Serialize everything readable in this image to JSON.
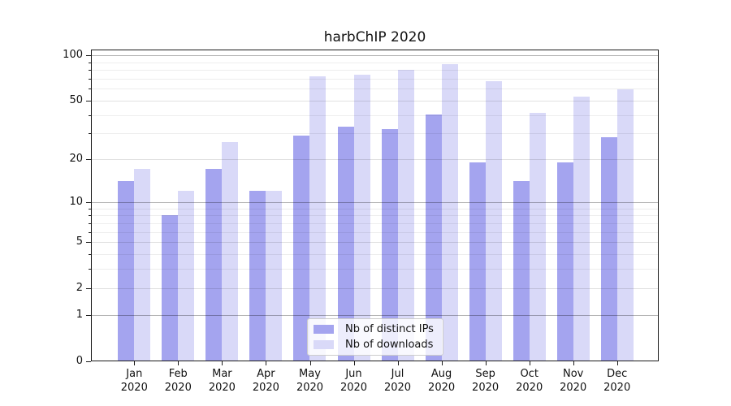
{
  "title": "harbChIP 2020",
  "chart_data": {
    "type": "bar",
    "title": "harbChIP 2020",
    "categories": [
      "Jan",
      "Feb",
      "Mar",
      "Apr",
      "May",
      "Jun",
      "Jul",
      "Aug",
      "Sep",
      "Oct",
      "Nov",
      "Dec"
    ],
    "category_year": "2020",
    "series": [
      {
        "name": "Nb of distinct IPs",
        "color": "#a4a4ef",
        "values": [
          14,
          8,
          17,
          12,
          29,
          33,
          32,
          40,
          19,
          14,
          19,
          28
        ]
      },
      {
        "name": "Nb of downloads",
        "color": "#d9d9f8",
        "values": [
          17,
          12,
          26,
          12,
          72,
          74,
          80,
          87,
          67,
          41,
          53,
          59
        ]
      }
    ],
    "yscale": "log1p",
    "ylim": [
      0,
      108
    ],
    "ytick_values": [
      0,
      1,
      2,
      5,
      10,
      20,
      50,
      100
    ],
    "ytick_dark_values": [
      1,
      10,
      100
    ],
    "yminor_values": [
      3,
      4,
      6,
      7,
      8,
      9,
      30,
      40,
      60,
      70,
      80,
      90
    ],
    "grid": true,
    "legend_position": "lower center",
    "xlabel": "",
    "ylabel": ""
  }
}
